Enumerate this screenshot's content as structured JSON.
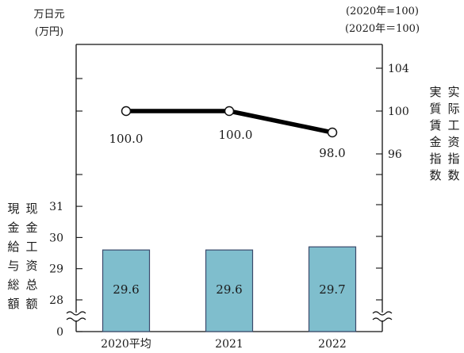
{
  "chart_data": {
    "type": "bar+line",
    "categories": [
      "2020平均",
      "2021",
      "2022"
    ],
    "bar": {
      "name": "現金給与総額／现金工资总额",
      "unit_lines": [
        "万日元",
        "(万円)"
      ],
      "values": [
        29.6,
        29.6,
        29.7
      ],
      "yticks": [
        0,
        28,
        29,
        30,
        31
      ],
      "ylim_visible": [
        27.6,
        31.3
      ],
      "axis_break": true,
      "color": "#7fbecd"
    },
    "line": {
      "name": "実質賃金指数／实际工资指数",
      "unit_lines": [
        "(2020年=100)",
        "(2020年＝100)"
      ],
      "values": [
        100.0,
        100.0,
        98.0
      ],
      "yticks": [
        96,
        100,
        104
      ],
      "color": "#000000"
    },
    "left_label_cols": [
      "現金給与総額",
      "现金工资总额"
    ],
    "right_label_cols": [
      "実質賃金指数",
      "实际工资指数"
    ]
  }
}
